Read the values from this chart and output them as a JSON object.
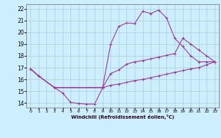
{
  "xlabel": "Windchill (Refroidissement éolien,°C)",
  "bg_color": "#cceeff",
  "grid_color": "#aacccc",
  "line_color": "#993399",
  "xlim": [
    -0.5,
    23.5
  ],
  "ylim": [
    13.6,
    22.4
  ],
  "yticks": [
    14,
    15,
    16,
    17,
    18,
    19,
    20,
    21,
    22
  ],
  "xticks": [
    0,
    1,
    2,
    3,
    4,
    5,
    6,
    7,
    8,
    9,
    10,
    11,
    12,
    13,
    14,
    15,
    16,
    17,
    18,
    19,
    20,
    21,
    22,
    23
  ],
  "line1_x": [
    0,
    1,
    3,
    4,
    5,
    6,
    7,
    8,
    9,
    10,
    11,
    12,
    13,
    14,
    15,
    16,
    17,
    18,
    19,
    20,
    21,
    22,
    23
  ],
  "line1_y": [
    16.9,
    16.3,
    15.3,
    14.85,
    14.05,
    13.95,
    13.9,
    13.9,
    15.3,
    19.0,
    20.5,
    20.8,
    20.75,
    21.8,
    21.6,
    21.9,
    21.2,
    19.5,
    18.8,
    18.0,
    17.5,
    17.5,
    17.5
  ],
  "line2_x": [
    0,
    1,
    3,
    9,
    10,
    11,
    12,
    13,
    14,
    15,
    16,
    17,
    18,
    19,
    20,
    21,
    22,
    23
  ],
  "line2_y": [
    16.9,
    16.3,
    15.3,
    15.3,
    16.5,
    16.8,
    17.3,
    17.5,
    17.6,
    17.75,
    17.9,
    18.05,
    18.2,
    19.5,
    19.0,
    18.5,
    18.0,
    17.5
  ],
  "line3_x": [
    0,
    1,
    3,
    9,
    10,
    11,
    12,
    13,
    14,
    15,
    16,
    17,
    18,
    19,
    20,
    21,
    22,
    23
  ],
  "line3_y": [
    16.9,
    16.3,
    15.3,
    15.3,
    15.5,
    15.6,
    15.75,
    15.9,
    16.0,
    16.15,
    16.3,
    16.45,
    16.6,
    16.75,
    16.9,
    17.0,
    17.25,
    17.5
  ]
}
